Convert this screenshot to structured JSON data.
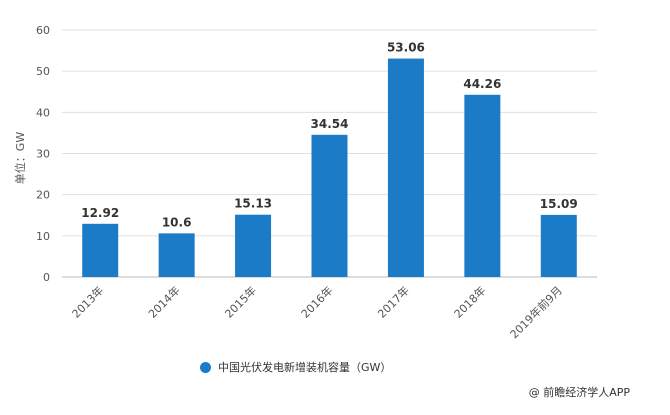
{
  "chart_data": {
    "type": "bar",
    "categories": [
      "2013年",
      "2014年",
      "2015年",
      "2016年",
      "2017年",
      "2018年",
      "2019年前9月"
    ],
    "series": [
      {
        "name": "中国光伏发电新增装机容量（GW）",
        "values": [
          12.92,
          10.6,
          15.13,
          34.54,
          53.06,
          44.26,
          15.09
        ],
        "labels": [
          "12.92",
          "10.6",
          "15.13",
          "34.54",
          "53.06",
          "44.26",
          "15.09"
        ],
        "color": "#1b7bc7"
      }
    ],
    "title": "",
    "xlabel": "",
    "ylabel": "单位：GW",
    "ylim": [
      0,
      60
    ],
    "yticks": [
      "0",
      "10",
      "20",
      "30",
      "40",
      "50",
      "60"
    ],
    "grid": true,
    "legend_position": "bottom-center"
  },
  "source": "@ 前瞻经济学人APP",
  "colors": {
    "grid": "#e0e0e0",
    "axis": "#bbbbbb"
  }
}
